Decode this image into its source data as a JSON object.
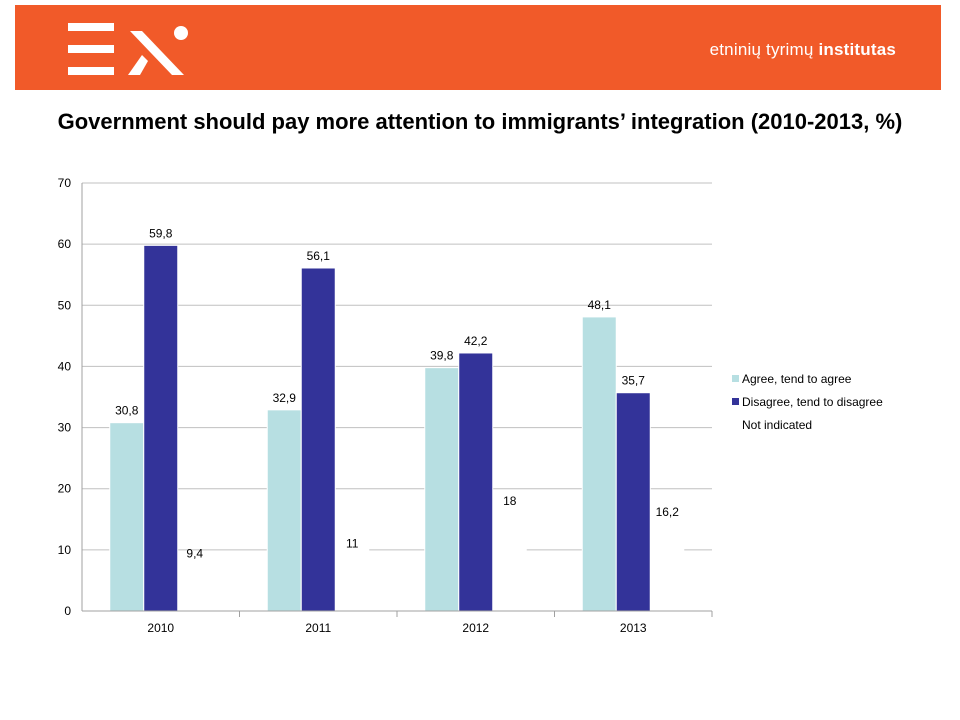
{
  "header": {
    "brand_plain": "etninių tyrimų ",
    "brand_bold": "institutas",
    "colors": {
      "background": "#f15a29",
      "logo": "#ffffff"
    }
  },
  "chart_data": {
    "type": "bar",
    "title": "Government should pay more attention to immigrants’ integration (2010-2013, %)",
    "categories": [
      "2010",
      "2011",
      "2012",
      "2013"
    ],
    "series": [
      {
        "name": "Agree, tend to agree",
        "values": [
          30.8,
          32.9,
          39.8,
          48.1
        ],
        "labels": [
          "30,8",
          "32,9",
          "39,8",
          "48,1"
        ],
        "color": "#b7dfe2"
      },
      {
        "name": "Disagree, tend to disagree",
        "values": [
          59.8,
          56.1,
          42.2,
          35.7
        ],
        "labels": [
          "59,8",
          "56,1",
          "42,2",
          "35,7"
        ],
        "color": "#333399"
      },
      {
        "name": "Not indicated",
        "values": [
          9.4,
          11,
          18,
          16.2
        ],
        "labels": [
          "9,4",
          "11",
          "18",
          "16,2"
        ],
        "color": "#ffffff"
      }
    ],
    "xlabel": "",
    "ylabel": "",
    "ylim": [
      0,
      70
    ],
    "yticks": [
      0,
      10,
      20,
      30,
      40,
      50,
      60,
      70
    ],
    "grid": true,
    "legend": "right"
  }
}
